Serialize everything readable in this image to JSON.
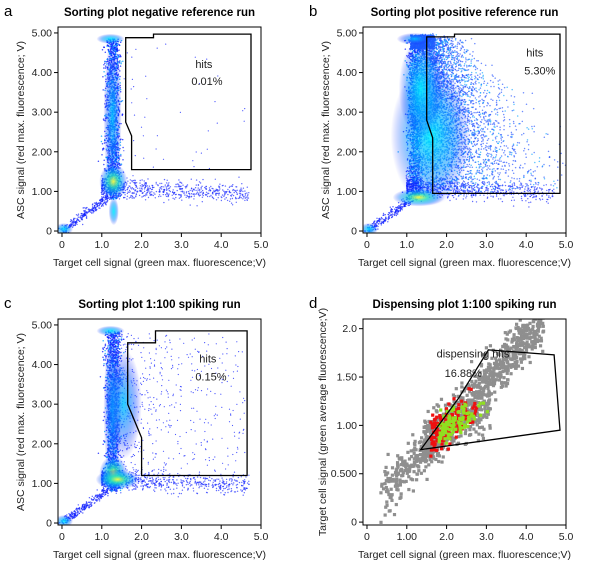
{
  "chart_data": [
    {
      "id": "a",
      "letter": "a",
      "type": "scatter",
      "title": "Sorting plot negative reference run",
      "xlabel": "Target cell signal (green max. fluorescence;V)",
      "ylabel": "ASC signal (red max. fluorescence; V)",
      "xlim": [
        -0.1,
        5.0
      ],
      "ylim": [
        -0.05,
        5.15
      ],
      "xticks": [
        {
          "v": 0,
          "label": "0"
        },
        {
          "v": 1,
          "label": "1.0"
        },
        {
          "v": 2,
          "label": "2.0"
        },
        {
          "v": 3,
          "label": "3.0"
        },
        {
          "v": 4,
          "label": "4.0"
        },
        {
          "v": 5,
          "label": "5.0"
        }
      ],
      "yticks": [
        {
          "v": 0,
          "label": "0"
        },
        {
          "v": 1,
          "label": "1.00"
        },
        {
          "v": 2,
          "label": "2.00"
        },
        {
          "v": 3,
          "label": "3.00"
        },
        {
          "v": 4,
          "label": "4.00"
        },
        {
          "v": 5,
          "label": "5.00"
        }
      ],
      "density_style": "blue",
      "gate": [
        [
          1.6,
          4.88
        ],
        [
          2.3,
          4.88
        ],
        [
          2.3,
          4.97
        ],
        [
          4.75,
          4.97
        ],
        [
          4.75,
          1.55
        ],
        [
          1.75,
          1.55
        ],
        [
          1.75,
          2.4
        ],
        [
          1.6,
          2.75
        ]
      ],
      "annotations": [
        {
          "text": "hits",
          "x": 3.35,
          "y": 4.12
        },
        {
          "text": "0.01%",
          "x": 3.25,
          "y": 3.68
        }
      ]
    },
    {
      "id": "b",
      "letter": "b",
      "type": "scatter",
      "title": "Sorting plot positive reference run",
      "xlabel": "Target cell signal (green max. fluorescence;V)",
      "ylabel": "ASC signal (red max. fluorescence; V)",
      "xlim": [
        -0.1,
        5.0
      ],
      "ylim": [
        -0.05,
        5.15
      ],
      "xticks": [
        {
          "v": 0,
          "label": "0"
        },
        {
          "v": 1,
          "label": "1.0"
        },
        {
          "v": 2,
          "label": "2.0"
        },
        {
          "v": 3,
          "label": "3.0"
        },
        {
          "v": 4,
          "label": "4.0"
        },
        {
          "v": 5,
          "label": "5.0"
        }
      ],
      "yticks": [
        {
          "v": 0,
          "label": "0"
        },
        {
          "v": 1,
          "label": "1.00"
        },
        {
          "v": 2,
          "label": "2.00"
        },
        {
          "v": 3,
          "label": "3.00"
        },
        {
          "v": 4,
          "label": "4.00"
        },
        {
          "v": 5,
          "label": "5.00"
        }
      ],
      "density_style": "blue",
      "gate": [
        [
          1.5,
          4.9
        ],
        [
          2.2,
          4.9
        ],
        [
          2.2,
          4.97
        ],
        [
          4.85,
          4.97
        ],
        [
          4.85,
          0.95
        ],
        [
          1.65,
          0.95
        ],
        [
          1.65,
          2.35
        ],
        [
          1.5,
          2.8
        ]
      ],
      "annotations": [
        {
          "text": "hits",
          "x": 4.0,
          "y": 4.4
        },
        {
          "text": "5.30%",
          "x": 3.95,
          "y": 3.95
        }
      ]
    },
    {
      "id": "c",
      "letter": "c",
      "type": "scatter",
      "title": "Sorting plot 1:100 spiking run",
      "xlabel": "Target cell signal (green max. fluorescence;V)",
      "ylabel": "ASC signal (red max. fluorescence; V)",
      "xlim": [
        -0.1,
        5.0
      ],
      "ylim": [
        -0.05,
        5.15
      ],
      "xticks": [
        {
          "v": 0,
          "label": "0"
        },
        {
          "v": 1,
          "label": "1.0"
        },
        {
          "v": 2,
          "label": "2.0"
        },
        {
          "v": 3,
          "label": "3.0"
        },
        {
          "v": 4,
          "label": "4.0"
        },
        {
          "v": 5,
          "label": "5.0"
        }
      ],
      "yticks": [
        {
          "v": 0,
          "label": "0"
        },
        {
          "v": 1,
          "label": "1.00"
        },
        {
          "v": 2,
          "label": "2.00"
        },
        {
          "v": 3,
          "label": "3.00"
        },
        {
          "v": 4,
          "label": "4.00"
        },
        {
          "v": 5,
          "label": "5.00"
        }
      ],
      "density_style": "blue",
      "gate": [
        [
          1.65,
          4.55
        ],
        [
          2.35,
          4.55
        ],
        [
          2.35,
          4.85
        ],
        [
          4.65,
          4.85
        ],
        [
          4.65,
          1.2
        ],
        [
          2.0,
          1.2
        ],
        [
          2.0,
          2.15
        ],
        [
          1.65,
          3.0
        ]
      ],
      "annotations": [
        {
          "text": "hits",
          "x": 3.45,
          "y": 4.05
        },
        {
          "text": "0.15%",
          "x": 3.35,
          "y": 3.6
        }
      ]
    },
    {
      "id": "d",
      "letter": "d",
      "type": "scatter",
      "title": "Dispensing plot 1:100 spiking run",
      "xlabel": "Target cell signal (green max. fluorescence;V)",
      "ylabel": "Target cell signal (green average fluorescence;V)",
      "xlim": [
        -0.1,
        5.0
      ],
      "ylim": [
        -0.03,
        2.1
      ],
      "xticks": [
        {
          "v": 0,
          "label": "0"
        },
        {
          "v": 1,
          "label": "1.00"
        },
        {
          "v": 2,
          "label": "2.0"
        },
        {
          "v": 3,
          "label": "3.0"
        },
        {
          "v": 4,
          "label": "4.0"
        },
        {
          "v": 5,
          "label": "5.0"
        }
      ],
      "yticks": [
        {
          "v": 0,
          "label": "0"
        },
        {
          "v": 0.5,
          "label": "0.500"
        },
        {
          "v": 1,
          "label": "1.00"
        },
        {
          "v": 1.5,
          "label": "1.50"
        },
        {
          "v": 2,
          "label": "2.0"
        }
      ],
      "density_style": "gray",
      "gate": [
        [
          1.35,
          0.75
        ],
        [
          2.3,
          1.28
        ],
        [
          3.05,
          1.78
        ],
        [
          4.7,
          1.73
        ],
        [
          4.85,
          0.95
        ]
      ],
      "annotations": [
        {
          "text": "dispensing hits",
          "x": 1.75,
          "y": 1.7
        },
        {
          "text": "16.88%",
          "x": 1.95,
          "y": 1.5
        }
      ]
    }
  ]
}
